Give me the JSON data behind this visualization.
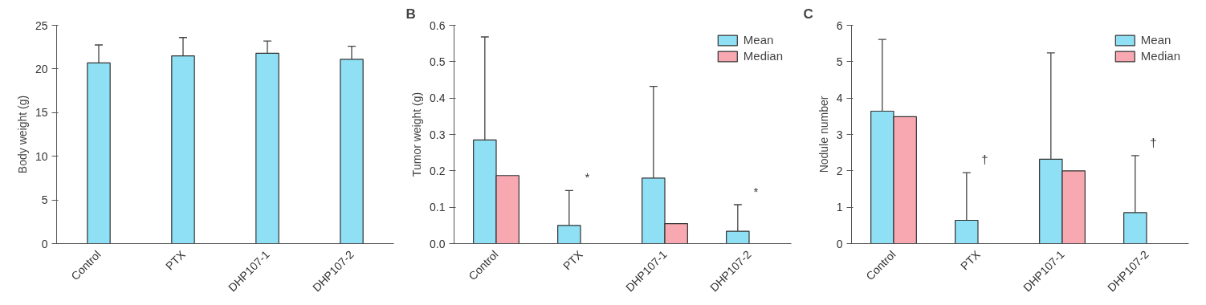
{
  "chart_data": [
    {
      "type": "bar",
      "ylabel": "Body weight (g)",
      "categories": [
        "Control",
        "PTX",
        "DHP107-1",
        "DHP107-2"
      ],
      "series": [
        {
          "color": "#8fe0f5",
          "values": [
            20.7,
            21.5,
            21.8,
            21.1
          ],
          "errors": [
            [
              20.7,
              22.75
            ],
            [
              21.5,
              23.6
            ],
            [
              21.8,
              23.2
            ],
            [
              21.1,
              22.6
            ]
          ]
        }
      ],
      "ylim": [
        0,
        25
      ],
      "yticks": [
        0,
        5,
        10,
        15,
        20,
        25
      ],
      "grid": false,
      "legend": false
    },
    {
      "type": "bar",
      "title": "B",
      "ylabel": "Tumor weight (g)",
      "categories": [
        "Control",
        "PTX",
        "DHP107-1",
        "DHP107-2"
      ],
      "series": [
        {
          "name": "Mean",
          "color": "#8fe0f5",
          "values": [
            0.285,
            0.05,
            0.18,
            0.034
          ],
          "errors": [
            [
              0.285,
              0.568
            ],
            [
              0.05,
              0.146
            ],
            [
              0.18,
              0.432
            ],
            [
              0.034,
              0.107
            ]
          ]
        },
        {
          "name": "Median",
          "color": "#f7a8b0",
          "values": [
            0.187,
            null,
            0.055,
            null
          ]
        }
      ],
      "annotations": [
        {
          "text": "*",
          "x": "PTX",
          "y": 0.146
        },
        {
          "text": "*",
          "x": "DHP107-2",
          "y": 0.107
        }
      ],
      "ylim": [
        0,
        0.6
      ],
      "yticks": [
        {
          "value": 0,
          "label": "0.0"
        },
        0.1,
        0.2,
        0.3,
        0.4,
        0.5,
        0.6
      ],
      "grid": false,
      "legend": "top right"
    },
    {
      "type": "bar",
      "title": "C",
      "ylabel": "Nodule number",
      "categories": [
        "Control",
        "PTX",
        "DHP107-1",
        "DHP107-2"
      ],
      "series": [
        {
          "name": "Mean",
          "color": "#8fe0f5",
          "values": [
            3.64,
            0.64,
            2.32,
            0.85
          ],
          "errors": [
            [
              3.64,
              5.61
            ],
            [
              0.64,
              1.95
            ],
            [
              2.32,
              5.24
            ],
            [
              0.85,
              2.42
            ]
          ]
        },
        {
          "name": "Median",
          "color": "#f7a8b0",
          "values": [
            3.49,
            null,
            2.0,
            null
          ]
        }
      ],
      "annotations": [
        {
          "text": "†",
          "x": "PTX",
          "y": 1.95
        },
        {
          "text": "†",
          "x": "DHP107-2",
          "y": 2.42
        }
      ],
      "ylim": [
        0,
        6
      ],
      "yticks": [
        0,
        1,
        2,
        3,
        4,
        5,
        6
      ],
      "grid": false,
      "legend": "top right"
    }
  ]
}
